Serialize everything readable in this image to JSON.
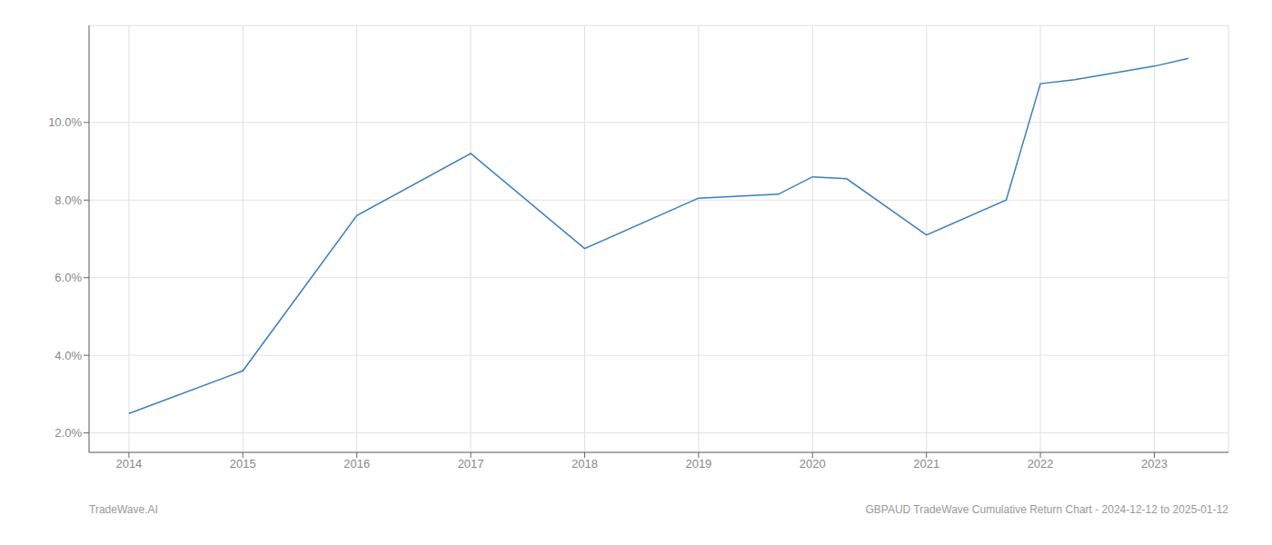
{
  "chart_data": {
    "type": "line",
    "x": [
      2014,
      2015,
      2016,
      2017,
      2018,
      2019,
      2019.7,
      2020,
      2020.3,
      2021,
      2021.7,
      2022,
      2022.3,
      2023,
      2023.3
    ],
    "values": [
      2.5,
      3.6,
      7.6,
      9.2,
      6.75,
      8.05,
      8.15,
      8.6,
      8.55,
      7.1,
      8.0,
      11.0,
      11.1,
      11.45,
      11.65
    ],
    "color": "#3a7ebf",
    "xlim": [
      2013.65,
      2023.65
    ],
    "ylim": [
      1.5,
      12.5
    ],
    "xticks": [
      2014,
      2015,
      2016,
      2017,
      2018,
      2019,
      2020,
      2021,
      2022,
      2023
    ],
    "yticks": [
      {
        "value": 2.0,
        "label": "2.0%"
      },
      {
        "value": 4.0,
        "label": "4.0%"
      },
      {
        "value": 6.0,
        "label": "6.0%"
      },
      {
        "value": 8.0,
        "label": "8.0%"
      },
      {
        "value": 10.0,
        "label": "10.0%"
      }
    ],
    "grid": true,
    "annotations": [
      "TradeWave.AI",
      "GBPAUD TradeWave Cumulative Return Chart - 2024-12-12 to 2025-01-12"
    ]
  }
}
